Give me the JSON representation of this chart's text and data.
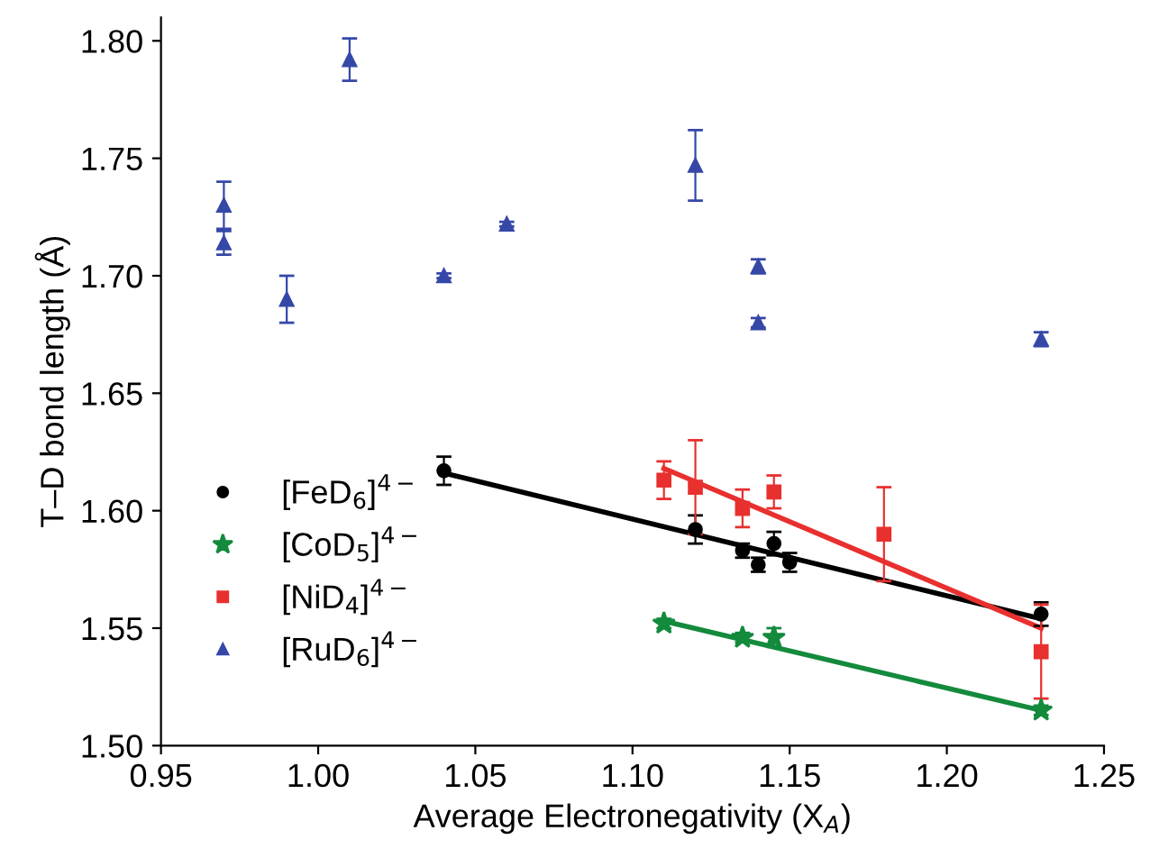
{
  "chart_data": {
    "type": "scatter",
    "xlabel": "Average Electronegativity (X$_{A}$)",
    "ylabel": "T–D bond length (Å)",
    "xlim": [
      0.95,
      1.25
    ],
    "ylim": [
      1.5,
      1.81
    ],
    "xticks": [
      0.95,
      {
        "value": 1.0,
        "label": "1.00"
      },
      1.05,
      {
        "value": 1.1,
        "label": "1.10"
      },
      1.15,
      {
        "value": 1.2,
        "label": "1.20"
      },
      1.25
    ],
    "yticks": [
      {
        "value": 1.5,
        "label": "1.50"
      },
      1.55,
      {
        "value": 1.6,
        "label": "1.60"
      },
      1.65,
      {
        "value": 1.7,
        "label": "1.70"
      },
      1.75,
      {
        "value": 1.8,
        "label": "1.80"
      }
    ],
    "grid": false,
    "legend": "left",
    "series": [
      {
        "name": "[FeD$_{6}$]$^{4−}$",
        "color": "#000000",
        "marker": "circle",
        "x": [
          1.04,
          1.12,
          1.135,
          1.14,
          1.145,
          1.15,
          1.23
        ],
        "values": [
          1.617,
          1.592,
          1.583,
          1.577,
          1.586,
          1.578,
          1.556
        ],
        "errors": [
          0.006,
          0.006,
          0.003,
          0.003,
          0.005,
          0.004,
          0.005
        ]
      },
      {
        "name": "[CoD$_{5}$]$^{4−}$",
        "color": "#138a3c",
        "marker": "star",
        "x": [
          1.11,
          1.135,
          1.145,
          1.23
        ],
        "values": [
          1.552,
          1.546,
          1.546,
          1.515
        ],
        "errors": [
          0.002,
          0.002,
          0.004,
          0.002
        ]
      },
      {
        "name": "[NiD$_{4}$]$^{4−}$",
        "color": "#e8302f",
        "marker": "square",
        "x": [
          1.11,
          1.12,
          1.135,
          1.145,
          1.18,
          1.23
        ],
        "values": [
          1.613,
          1.61,
          1.601,
          1.608,
          1.59,
          1.54
        ],
        "errors": [
          0.008,
          0.02,
          0.008,
          0.007,
          0.02,
          0.02
        ]
      },
      {
        "name": "[RuD$_{6}$]$^{4−}$",
        "color": "#3548a8",
        "marker": "triangle",
        "x": [
          0.97,
          0.97,
          0.99,
          1.01,
          1.04,
          1.06,
          1.12,
          1.14,
          1.14,
          1.23
        ],
        "values": [
          1.73,
          1.714,
          1.69,
          1.792,
          1.7,
          1.722,
          1.747,
          1.704,
          1.68,
          1.673
        ],
        "errors": [
          0.01,
          0.005,
          0.01,
          0.009,
          0.001,
          0.001,
          0.015,
          0.003,
          0.002,
          0.003
        ]
      },
      {
        "type": "line",
        "color": "#000000",
        "x": [
          1.04,
          1.23
        ],
        "values": [
          1.616,
          1.554
        ]
      },
      {
        "type": "line",
        "color": "#138a3c",
        "x": [
          1.11,
          1.23
        ],
        "values": [
          1.553,
          1.515
        ]
      },
      {
        "type": "line",
        "color": "#e8302f",
        "x": [
          1.11,
          1.23
        ],
        "values": [
          1.618,
          1.55
        ]
      }
    ]
  }
}
